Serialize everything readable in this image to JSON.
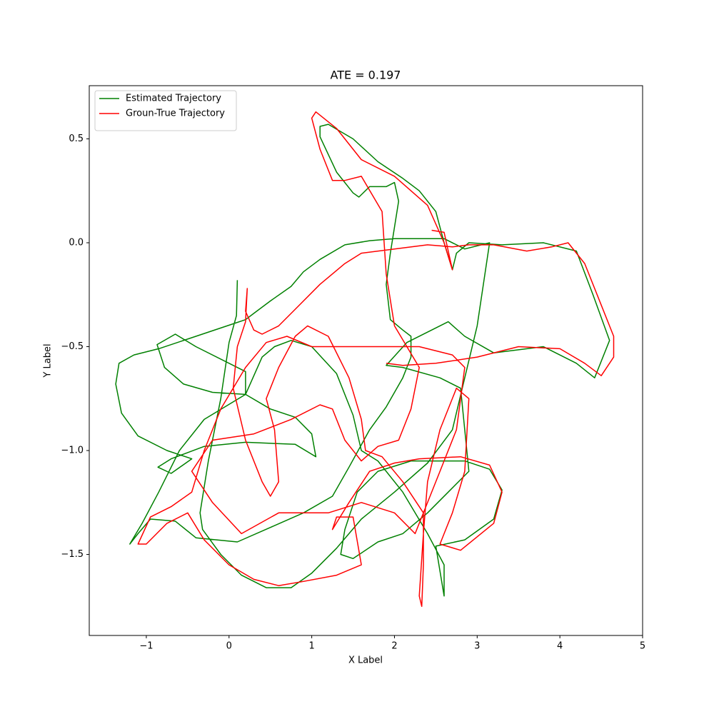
{
  "chart_data": {
    "type": "line",
    "title": "ATE = 0.197",
    "xlabel": "X Label",
    "ylabel": "Y Label",
    "xlim": [
      -1.69,
      5.0
    ],
    "ylim": [
      -1.89,
      0.756
    ],
    "xticks": [
      {
        "value": -1,
        "label": "−1"
      },
      0,
      1,
      2,
      3,
      4,
      5
    ],
    "yticks": [
      {
        "value": -1.5,
        "label": "−1.5"
      },
      {
        "value": -1.0,
        "label": "−1.0"
      },
      {
        "value": -0.5,
        "label": "−0.5"
      },
      {
        "value": 0.0,
        "label": "0.0"
      },
      0.5
    ],
    "legend": "upper left",
    "grid": false,
    "series": [
      {
        "name": "Estimated Trajectory",
        "color": "#008000",
        "x": [
          0.1,
          0.09,
          0.0,
          -0.1,
          -0.25,
          -0.35,
          -0.32,
          -0.1,
          0.15,
          0.45,
          0.75,
          1.0,
          1.3,
          1.6,
          2.0,
          2.4,
          2.7,
          2.85,
          3.0,
          3.15,
          2.85,
          2.6,
          2.0,
          1.7,
          1.4,
          1.1,
          0.9,
          0.75,
          0.5,
          0.3,
          0.2,
          0.05,
          -0.4,
          -0.85,
          -1.15,
          -1.33,
          -1.37,
          -1.3,
          -1.1,
          -0.75,
          -0.45,
          -0.7,
          -0.86,
          -0.7,
          -0.3,
          0.2,
          0.8,
          1.05,
          1.0,
          0.8,
          0.5,
          0.2,
          -0.2,
          -0.55,
          -0.78,
          -0.87,
          -0.65,
          -0.4,
          0.2,
          0.2,
          0.4,
          0.55,
          0.75,
          1.0,
          1.3,
          1.5,
          1.6,
          1.8,
          2.1,
          2.4,
          2.6,
          2.6,
          2.5,
          2.85,
          3.2,
          3.3,
          3.15,
          2.85,
          2.6,
          2.2,
          1.8,
          1.55,
          1.4,
          1.35,
          1.5,
          1.8,
          2.1,
          2.4,
          2.65,
          2.9,
          2.85,
          2.8,
          2.55,
          2.1,
          1.9,
          2.15,
          2.65,
          2.85,
          3.2,
          3.8,
          4.2,
          4.42,
          4.6,
          4.4,
          4.2,
          3.8,
          3.3,
          2.9,
          2.75,
          2.7,
          2.6,
          2.5,
          2.3,
          2.1,
          1.8,
          1.5,
          1.2,
          1.1,
          1.1,
          1.3,
          1.5,
          1.57,
          1.7,
          1.9,
          2.0,
          2.05,
          1.95,
          1.9,
          1.95,
          2.1,
          2.2,
          2.2,
          2.1,
          1.9,
          1.7,
          1.45,
          1.25,
          0.9,
          0.5,
          0.1,
          -0.4,
          -0.65,
          -0.95,
          -1.1,
          -1.2,
          -1.05,
          -0.85,
          -0.6,
          -0.3,
          0.2
        ],
        "values": [
          -0.18,
          -0.35,
          -0.48,
          -0.75,
          -1.05,
          -1.3,
          -1.38,
          -1.5,
          -1.6,
          -1.66,
          -1.66,
          -1.59,
          -1.47,
          -1.33,
          -1.2,
          -1.06,
          -0.9,
          -0.65,
          -0.4,
          0.0,
          -0.03,
          0.02,
          0.02,
          0.01,
          -0.01,
          -0.08,
          -0.14,
          -0.21,
          -0.28,
          -0.34,
          -0.37,
          -0.39,
          -0.45,
          -0.51,
          -0.54,
          -0.58,
          -0.68,
          -0.82,
          -0.93,
          -1.0,
          -1.04,
          -1.11,
          -1.08,
          -1.04,
          -0.98,
          -0.96,
          -0.97,
          -1.03,
          -0.92,
          -0.84,
          -0.8,
          -0.73,
          -0.72,
          -0.68,
          -0.6,
          -0.49,
          -0.44,
          -0.5,
          -0.62,
          -0.73,
          -0.55,
          -0.5,
          -0.47,
          -0.5,
          -0.63,
          -0.83,
          -1.0,
          -1.05,
          -1.2,
          -1.4,
          -1.55,
          -1.7,
          -1.46,
          -1.43,
          -1.33,
          -1.19,
          -1.09,
          -1.05,
          -1.05,
          -1.05,
          -1.1,
          -1.2,
          -1.38,
          -1.5,
          -1.52,
          -1.44,
          -1.4,
          -1.3,
          -1.2,
          -1.1,
          -0.9,
          -0.7,
          -0.65,
          -0.6,
          -0.59,
          -0.48,
          -0.38,
          -0.45,
          -0.53,
          -0.5,
          -0.58,
          -0.65,
          -0.47,
          -0.25,
          -0.04,
          0.0,
          -0.01,
          0.0,
          -0.05,
          -0.13,
          0.0,
          0.15,
          0.25,
          0.31,
          0.39,
          0.5,
          0.57,
          0.56,
          0.51,
          0.34,
          0.24,
          0.22,
          0.27,
          0.27,
          0.29,
          0.2,
          -0.05,
          -0.2,
          -0.37,
          -0.42,
          -0.45,
          -0.55,
          -0.65,
          -0.79,
          -0.9,
          -1.08,
          -1.22,
          -1.3,
          -1.37,
          -1.44,
          -1.42,
          -1.34,
          -1.33,
          -1.4,
          -1.45,
          -1.35,
          -1.2,
          -1.0,
          -0.85,
          -0.73
        ]
      },
      {
        "name": "Groun-True Trajectory",
        "color": "#ff0000",
        "x": [
          1.9,
          2.1,
          2.5,
          3.0,
          3.5,
          4.0,
          4.3,
          4.5,
          4.65,
          4.65,
          4.5,
          4.3,
          4.1,
          3.9,
          3.6,
          3.2,
          2.9,
          2.7,
          2.4,
          2.0,
          1.6,
          1.4,
          1.1,
          0.8,
          0.6,
          0.4,
          0.3,
          0.2,
          0.22,
          0.2,
          0.1,
          0.05,
          0.2,
          0.4,
          0.5,
          0.6,
          0.55,
          0.45,
          0.6,
          0.8,
          0.95,
          1.2,
          1.45,
          1.6,
          1.65,
          1.85,
          2.1,
          2.35,
          2.35,
          2.33,
          2.3,
          2.35,
          2.4,
          2.55,
          2.75,
          2.9,
          2.85,
          2.7,
          2.55,
          2.8,
          3.2,
          3.3,
          3.15,
          2.8,
          2.3,
          2.0,
          1.7,
          1.45,
          1.25,
          1.3,
          1.5,
          1.6,
          1.3,
          0.9,
          0.6,
          0.3,
          0.0,
          -0.3,
          -0.5,
          -0.75,
          -1.0,
          -1.1,
          -0.95,
          -0.7,
          -0.45,
          -0.3,
          -0.1,
          0.2,
          0.45,
          0.7,
          1.0,
          1.3,
          1.8,
          2.3,
          2.7,
          2.85,
          2.75,
          2.55,
          2.25,
          2.0,
          1.6,
          1.2,
          0.6,
          0.15,
          -0.2,
          -0.45,
          -0.2,
          0.3,
          0.75,
          1.1,
          1.25,
          1.4,
          1.6,
          1.8,
          2.05,
          2.2,
          2.3,
          2.0,
          1.9,
          1.85,
          1.6,
          1.4,
          1.25,
          1.1,
          1.0,
          1.05,
          1.3,
          1.6,
          2.0,
          2.4,
          2.6,
          2.7,
          2.6,
          2.45
        ],
        "values": [
          -0.58,
          -0.59,
          -0.58,
          -0.55,
          -0.5,
          -0.51,
          -0.58,
          -0.64,
          -0.55,
          -0.45,
          -0.3,
          -0.1,
          0.0,
          -0.02,
          -0.04,
          -0.01,
          -0.01,
          -0.02,
          -0.01,
          -0.03,
          -0.05,
          -0.1,
          -0.2,
          -0.32,
          -0.4,
          -0.44,
          -0.42,
          -0.33,
          -0.22,
          -0.38,
          -0.5,
          -0.7,
          -0.95,
          -1.15,
          -1.22,
          -1.15,
          -0.9,
          -0.75,
          -0.6,
          -0.45,
          -0.4,
          -0.45,
          -0.65,
          -0.85,
          -1.0,
          -1.03,
          -1.15,
          -1.3,
          -1.55,
          -1.75,
          -1.7,
          -1.4,
          -1.15,
          -0.9,
          -0.7,
          -0.75,
          -1.1,
          -1.3,
          -1.45,
          -1.48,
          -1.35,
          -1.2,
          -1.07,
          -1.03,
          -1.04,
          -1.06,
          -1.1,
          -1.25,
          -1.38,
          -1.32,
          -1.32,
          -1.55,
          -1.6,
          -1.63,
          -1.65,
          -1.62,
          -1.55,
          -1.43,
          -1.3,
          -1.35,
          -1.45,
          -1.45,
          -1.32,
          -1.27,
          -1.2,
          -1.0,
          -0.8,
          -0.6,
          -0.48,
          -0.45,
          -0.5,
          -0.5,
          -0.5,
          -0.5,
          -0.54,
          -0.6,
          -0.9,
          -1.1,
          -1.4,
          -1.3,
          -1.25,
          -1.3,
          -1.3,
          -1.4,
          -1.25,
          -1.1,
          -0.95,
          -0.92,
          -0.85,
          -0.78,
          -0.8,
          -0.95,
          -1.05,
          -0.98,
          -0.95,
          -0.8,
          -0.6,
          -0.4,
          -0.15,
          0.15,
          0.32,
          0.3,
          0.3,
          0.45,
          0.6,
          0.63,
          0.55,
          0.4,
          0.32,
          0.18,
          0.0,
          -0.13,
          0.05,
          0.06
        ]
      }
    ]
  }
}
